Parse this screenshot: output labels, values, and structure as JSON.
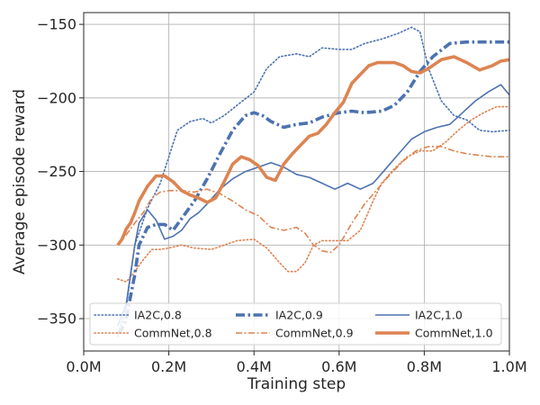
{
  "chart_data": {
    "type": "line",
    "title": "",
    "xlabel": "Training step",
    "ylabel": "Average episode reward",
    "xlim": [
      0.0,
      1.0
    ],
    "ylim": [
      -372,
      -142
    ],
    "x_ticks": [
      0.0,
      0.2,
      0.4,
      0.6,
      0.8,
      1.0
    ],
    "x_tick_labels": [
      "0.0M",
      "0.2M",
      "0.4M",
      "0.6M",
      "0.8M",
      "1.0M"
    ],
    "y_ticks": [
      -350,
      -300,
      -250,
      -200,
      -150
    ],
    "y_tick_labels": [
      "−350",
      "−300",
      "−250",
      "−200",
      "−150"
    ],
    "grid": true,
    "legend_position": "bottom",
    "series": [
      {
        "name": "IA2C,0.8",
        "color": "#4c72b0",
        "style": "dotted",
        "width": 1.6,
        "points": [
          [
            0.08,
            -362
          ],
          [
            0.1,
            -342
          ],
          [
            0.12,
            -300
          ],
          [
            0.15,
            -275
          ],
          [
            0.18,
            -258
          ],
          [
            0.2,
            -240
          ],
          [
            0.22,
            -222
          ],
          [
            0.25,
            -216
          ],
          [
            0.28,
            -214
          ],
          [
            0.3,
            -217
          ],
          [
            0.33,
            -212
          ],
          [
            0.36,
            -205
          ],
          [
            0.4,
            -196
          ],
          [
            0.43,
            -180
          ],
          [
            0.46,
            -172
          ],
          [
            0.5,
            -170
          ],
          [
            0.53,
            -172
          ],
          [
            0.56,
            -166
          ],
          [
            0.6,
            -167
          ],
          [
            0.63,
            -167
          ],
          [
            0.66,
            -163
          ],
          [
            0.7,
            -160
          ],
          [
            0.74,
            -156
          ],
          [
            0.77,
            -152
          ],
          [
            0.79,
            -155
          ],
          [
            0.81,
            -180
          ],
          [
            0.84,
            -202
          ],
          [
            0.87,
            -212
          ],
          [
            0.9,
            -215
          ],
          [
            0.93,
            -222
          ],
          [
            0.96,
            -223
          ],
          [
            1.0,
            -222
          ]
        ]
      },
      {
        "name": "CommNet,0.8",
        "color": "#dd8452",
        "style": "dotted",
        "width": 1.6,
        "points": [
          [
            0.08,
            -323
          ],
          [
            0.1,
            -325
          ],
          [
            0.12,
            -318
          ],
          [
            0.14,
            -310
          ],
          [
            0.16,
            -303
          ],
          [
            0.18,
            -303
          ],
          [
            0.2,
            -302
          ],
          [
            0.23,
            -300
          ],
          [
            0.26,
            -302
          ],
          [
            0.3,
            -303
          ],
          [
            0.33,
            -300
          ],
          [
            0.36,
            -297
          ],
          [
            0.4,
            -296
          ],
          [
            0.43,
            -302
          ],
          [
            0.46,
            -312
          ],
          [
            0.48,
            -318
          ],
          [
            0.5,
            -318
          ],
          [
            0.52,
            -312
          ],
          [
            0.54,
            -300
          ],
          [
            0.56,
            -297
          ],
          [
            0.59,
            -297
          ],
          [
            0.62,
            -297
          ],
          [
            0.65,
            -290
          ],
          [
            0.68,
            -270
          ],
          [
            0.7,
            -258
          ],
          [
            0.73,
            -248
          ],
          [
            0.76,
            -240
          ],
          [
            0.79,
            -236
          ],
          [
            0.82,
            -236
          ],
          [
            0.85,
            -230
          ],
          [
            0.88,
            -222
          ],
          [
            0.91,
            -215
          ],
          [
            0.94,
            -210
          ],
          [
            0.97,
            -206
          ],
          [
            1.0,
            -206
          ]
        ]
      },
      {
        "name": "IA2C,0.9",
        "color": "#4c72b0",
        "style": "dashdot",
        "width": 3.6,
        "points": [
          [
            0.08,
            -360
          ],
          [
            0.09,
            -357
          ],
          [
            0.1,
            -350
          ],
          [
            0.11,
            -335
          ],
          [
            0.12,
            -320
          ],
          [
            0.13,
            -300
          ],
          [
            0.15,
            -288
          ],
          [
            0.17,
            -286
          ],
          [
            0.19,
            -286
          ],
          [
            0.21,
            -290
          ],
          [
            0.23,
            -282
          ],
          [
            0.26,
            -270
          ],
          [
            0.29,
            -255
          ],
          [
            0.32,
            -238
          ],
          [
            0.35,
            -222
          ],
          [
            0.38,
            -212
          ],
          [
            0.4,
            -210
          ],
          [
            0.42,
            -212
          ],
          [
            0.44,
            -216
          ],
          [
            0.47,
            -220
          ],
          [
            0.5,
            -218
          ],
          [
            0.53,
            -217
          ],
          [
            0.56,
            -213
          ],
          [
            0.6,
            -210
          ],
          [
            0.63,
            -209
          ],
          [
            0.66,
            -210
          ],
          [
            0.7,
            -209
          ],
          [
            0.73,
            -205
          ],
          [
            0.76,
            -196
          ],
          [
            0.79,
            -182
          ],
          [
            0.82,
            -172
          ],
          [
            0.86,
            -163
          ],
          [
            0.9,
            -162
          ],
          [
            0.94,
            -162
          ],
          [
            0.97,
            -162
          ],
          [
            1.0,
            -162
          ]
        ]
      },
      {
        "name": "CommNet,0.9",
        "color": "#dd8452",
        "style": "dashdot",
        "width": 1.6,
        "points": [
          [
            0.08,
            -300
          ],
          [
            0.1,
            -293
          ],
          [
            0.12,
            -285
          ],
          [
            0.14,
            -278
          ],
          [
            0.16,
            -268
          ],
          [
            0.18,
            -264
          ],
          [
            0.2,
            -263
          ],
          [
            0.23,
            -263
          ],
          [
            0.26,
            -264
          ],
          [
            0.29,
            -262
          ],
          [
            0.32,
            -265
          ],
          [
            0.35,
            -270
          ],
          [
            0.38,
            -276
          ],
          [
            0.41,
            -280
          ],
          [
            0.44,
            -288
          ],
          [
            0.47,
            -290
          ],
          [
            0.5,
            -288
          ],
          [
            0.52,
            -292
          ],
          [
            0.54,
            -300
          ],
          [
            0.56,
            -304
          ],
          [
            0.58,
            -305
          ],
          [
            0.6,
            -300
          ],
          [
            0.63,
            -285
          ],
          [
            0.66,
            -272
          ],
          [
            0.69,
            -262
          ],
          [
            0.72,
            -252
          ],
          [
            0.75,
            -243
          ],
          [
            0.78,
            -236
          ],
          [
            0.81,
            -233
          ],
          [
            0.84,
            -233
          ],
          [
            0.87,
            -236
          ],
          [
            0.9,
            -238
          ],
          [
            0.93,
            -239
          ],
          [
            0.96,
            -240
          ],
          [
            1.0,
            -240
          ]
        ]
      },
      {
        "name": "IA2C,1.0",
        "color": "#4c72b0",
        "style": "solid",
        "width": 1.6,
        "points": [
          [
            0.08,
            -355
          ],
          [
            0.1,
            -340
          ],
          [
            0.11,
            -320
          ],
          [
            0.12,
            -300
          ],
          [
            0.13,
            -285
          ],
          [
            0.15,
            -276
          ],
          [
            0.17,
            -283
          ],
          [
            0.19,
            -296
          ],
          [
            0.21,
            -294
          ],
          [
            0.23,
            -290
          ],
          [
            0.25,
            -282
          ],
          [
            0.27,
            -278
          ],
          [
            0.29,
            -272
          ],
          [
            0.32,
            -262
          ],
          [
            0.35,
            -255
          ],
          [
            0.38,
            -250
          ],
          [
            0.41,
            -247
          ],
          [
            0.44,
            -244
          ],
          [
            0.47,
            -247
          ],
          [
            0.5,
            -252
          ],
          [
            0.53,
            -254
          ],
          [
            0.56,
            -258
          ],
          [
            0.59,
            -262
          ],
          [
            0.62,
            -258
          ],
          [
            0.65,
            -262
          ],
          [
            0.68,
            -258
          ],
          [
            0.71,
            -248
          ],
          [
            0.74,
            -238
          ],
          [
            0.77,
            -228
          ],
          [
            0.8,
            -223
          ],
          [
            0.83,
            -220
          ],
          [
            0.86,
            -218
          ],
          [
            0.89,
            -210
          ],
          [
            0.92,
            -202
          ],
          [
            0.95,
            -196
          ],
          [
            0.98,
            -191
          ],
          [
            1.0,
            -198
          ]
        ]
      },
      {
        "name": "CommNet,1.0",
        "color": "#dd8452",
        "style": "solid",
        "width": 3.6,
        "points": [
          [
            0.08,
            -300
          ],
          [
            0.09,
            -296
          ],
          [
            0.1,
            -289
          ],
          [
            0.11,
            -285
          ],
          [
            0.12,
            -278
          ],
          [
            0.13,
            -270
          ],
          [
            0.15,
            -260
          ],
          [
            0.17,
            -253
          ],
          [
            0.19,
            -253
          ],
          [
            0.21,
            -257
          ],
          [
            0.23,
            -263
          ],
          [
            0.25,
            -266
          ],
          [
            0.27,
            -268
          ],
          [
            0.29,
            -271
          ],
          [
            0.31,
            -268
          ],
          [
            0.33,
            -257
          ],
          [
            0.35,
            -245
          ],
          [
            0.37,
            -240
          ],
          [
            0.39,
            -242
          ],
          [
            0.41,
            -246
          ],
          [
            0.43,
            -254
          ],
          [
            0.45,
            -256
          ],
          [
            0.47,
            -245
          ],
          [
            0.49,
            -238
          ],
          [
            0.51,
            -232
          ],
          [
            0.53,
            -226
          ],
          [
            0.55,
            -224
          ],
          [
            0.57,
            -218
          ],
          [
            0.59,
            -210
          ],
          [
            0.61,
            -203
          ],
          [
            0.63,
            -190
          ],
          [
            0.65,
            -184
          ],
          [
            0.67,
            -178
          ],
          [
            0.69,
            -176
          ],
          [
            0.71,
            -176
          ],
          [
            0.73,
            -176
          ],
          [
            0.75,
            -178
          ],
          [
            0.77,
            -182
          ],
          [
            0.79,
            -183
          ],
          [
            0.81,
            -180
          ],
          [
            0.84,
            -174
          ],
          [
            0.87,
            -172
          ],
          [
            0.9,
            -176
          ],
          [
            0.93,
            -181
          ],
          [
            0.96,
            -178
          ],
          [
            0.98,
            -175
          ],
          [
            1.0,
            -174
          ]
        ]
      }
    ]
  }
}
